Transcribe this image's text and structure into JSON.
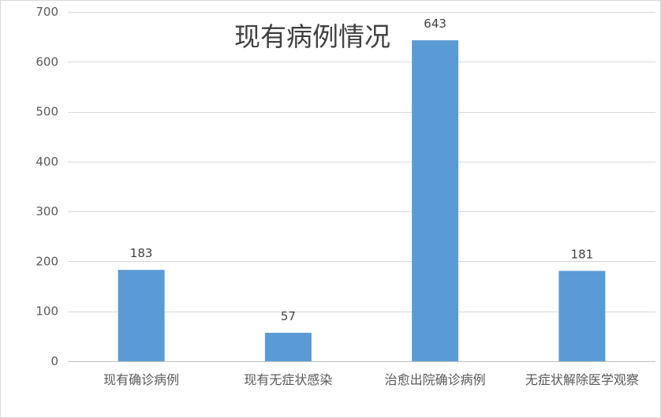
{
  "chart_data": {
    "type": "bar",
    "title": "现有病例情况",
    "categories": [
      "现有确诊病例",
      "现有无症状感染",
      "治愈出院确诊病例",
      "无症状解除医学观察"
    ],
    "values": [
      183,
      57,
      643,
      181
    ],
    "data_labels": [
      "183",
      "57",
      "643",
      "181"
    ],
    "ylim": [
      0,
      700
    ],
    "yticks": [
      0,
      100,
      200,
      300,
      400,
      500,
      600,
      700
    ],
    "grid": true,
    "legend": "none",
    "bar_color": "#5b9bd5"
  }
}
